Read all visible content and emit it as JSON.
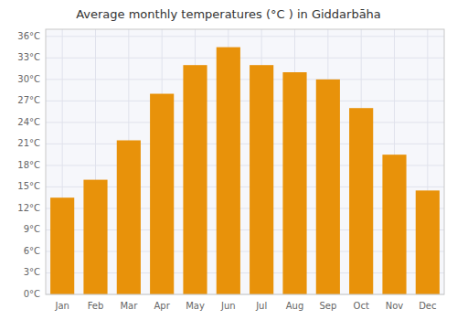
{
  "chart_data": {
    "type": "bar",
    "title": "Average monthly temperatures (°C ) in Giddarbāha",
    "categories": [
      "Jan",
      "Feb",
      "Mar",
      "Apr",
      "May",
      "Jun",
      "Jul",
      "Aug",
      "Sep",
      "Oct",
      "Nov",
      "Dec"
    ],
    "values": [
      13.5,
      16.0,
      21.5,
      28.0,
      32.0,
      34.5,
      32.0,
      31.0,
      30.0,
      26.0,
      19.5,
      14.5
    ],
    "color": "#E8920A",
    "ylim": [
      0,
      37
    ],
    "yticks": [
      {
        "value": 0,
        "label": "0°C"
      },
      {
        "value": 3,
        "label": "3°C"
      },
      {
        "value": 6,
        "label": "6°C"
      },
      {
        "value": 9,
        "label": "9°C"
      },
      {
        "value": 12,
        "label": "12°C"
      },
      {
        "value": 15,
        "label": "15°C"
      },
      {
        "value": 18,
        "label": "18°C"
      },
      {
        "value": 21,
        "label": "21°C"
      },
      {
        "value": 24,
        "label": "24°C"
      },
      {
        "value": 27,
        "label": "27°C"
      },
      {
        "value": 30,
        "label": "30°C"
      },
      {
        "value": 33,
        "label": "33°C"
      },
      {
        "value": 36,
        "label": "36°C"
      }
    ],
    "grid": true
  }
}
